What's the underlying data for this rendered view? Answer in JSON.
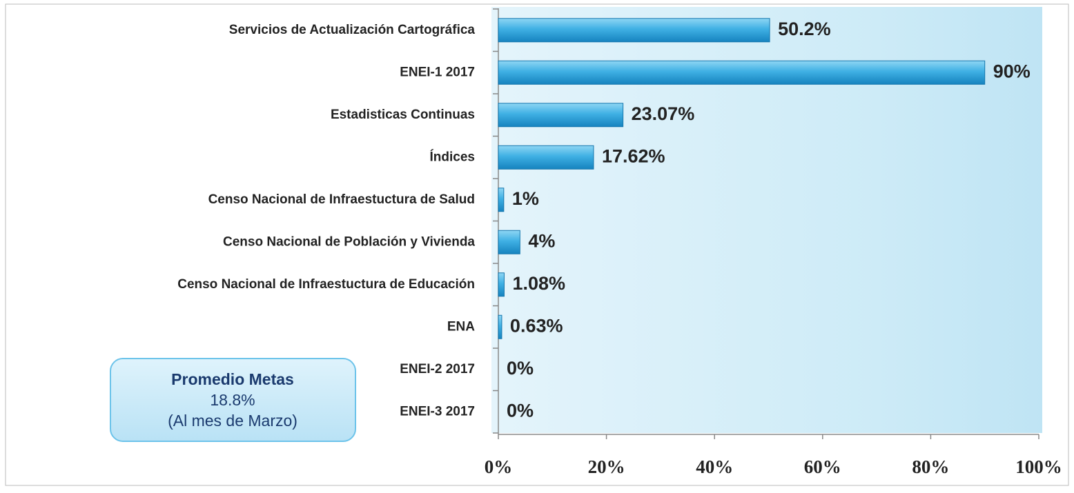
{
  "chart_data": {
    "type": "bar",
    "orientation": "horizontal",
    "categories": [
      "Servicios de Actualización  Cartográfica",
      "ENEI-1 2017",
      "Estadisticas Continuas",
      "Índices",
      "Censo Nacional  de Infraestuctura de Salud",
      "Censo Nacional  de Población y Vivienda",
      "Censo Nacional  de Infraestuctura de Educación",
      "ENA",
      "ENEI-2 2017",
      "ENEI-3 2017"
    ],
    "values": [
      50.2,
      90,
      23.07,
      17.62,
      1,
      4,
      1.08,
      0.63,
      0,
      0
    ],
    "value_labels": [
      "50.2%",
      "90%",
      "23.07%",
      "17.62%",
      "1%",
      "4%",
      "1.08%",
      "0.63%",
      "0%",
      "0%"
    ],
    "color": "#2a9fd8",
    "xlim": [
      0,
      100
    ],
    "xticks": [
      {
        "value": 0,
        "label": "0%"
      },
      {
        "value": 20,
        "label": "20%"
      },
      {
        "value": 40,
        "label": "40%"
      },
      {
        "value": 60,
        "label": "60%"
      },
      {
        "value": 80,
        "label": "80%"
      },
      {
        "value": 100,
        "label": "100%"
      }
    ],
    "annotation": [
      "Promedio Metas",
      "18.8%",
      "(Al mes de  Marzo)"
    ]
  }
}
